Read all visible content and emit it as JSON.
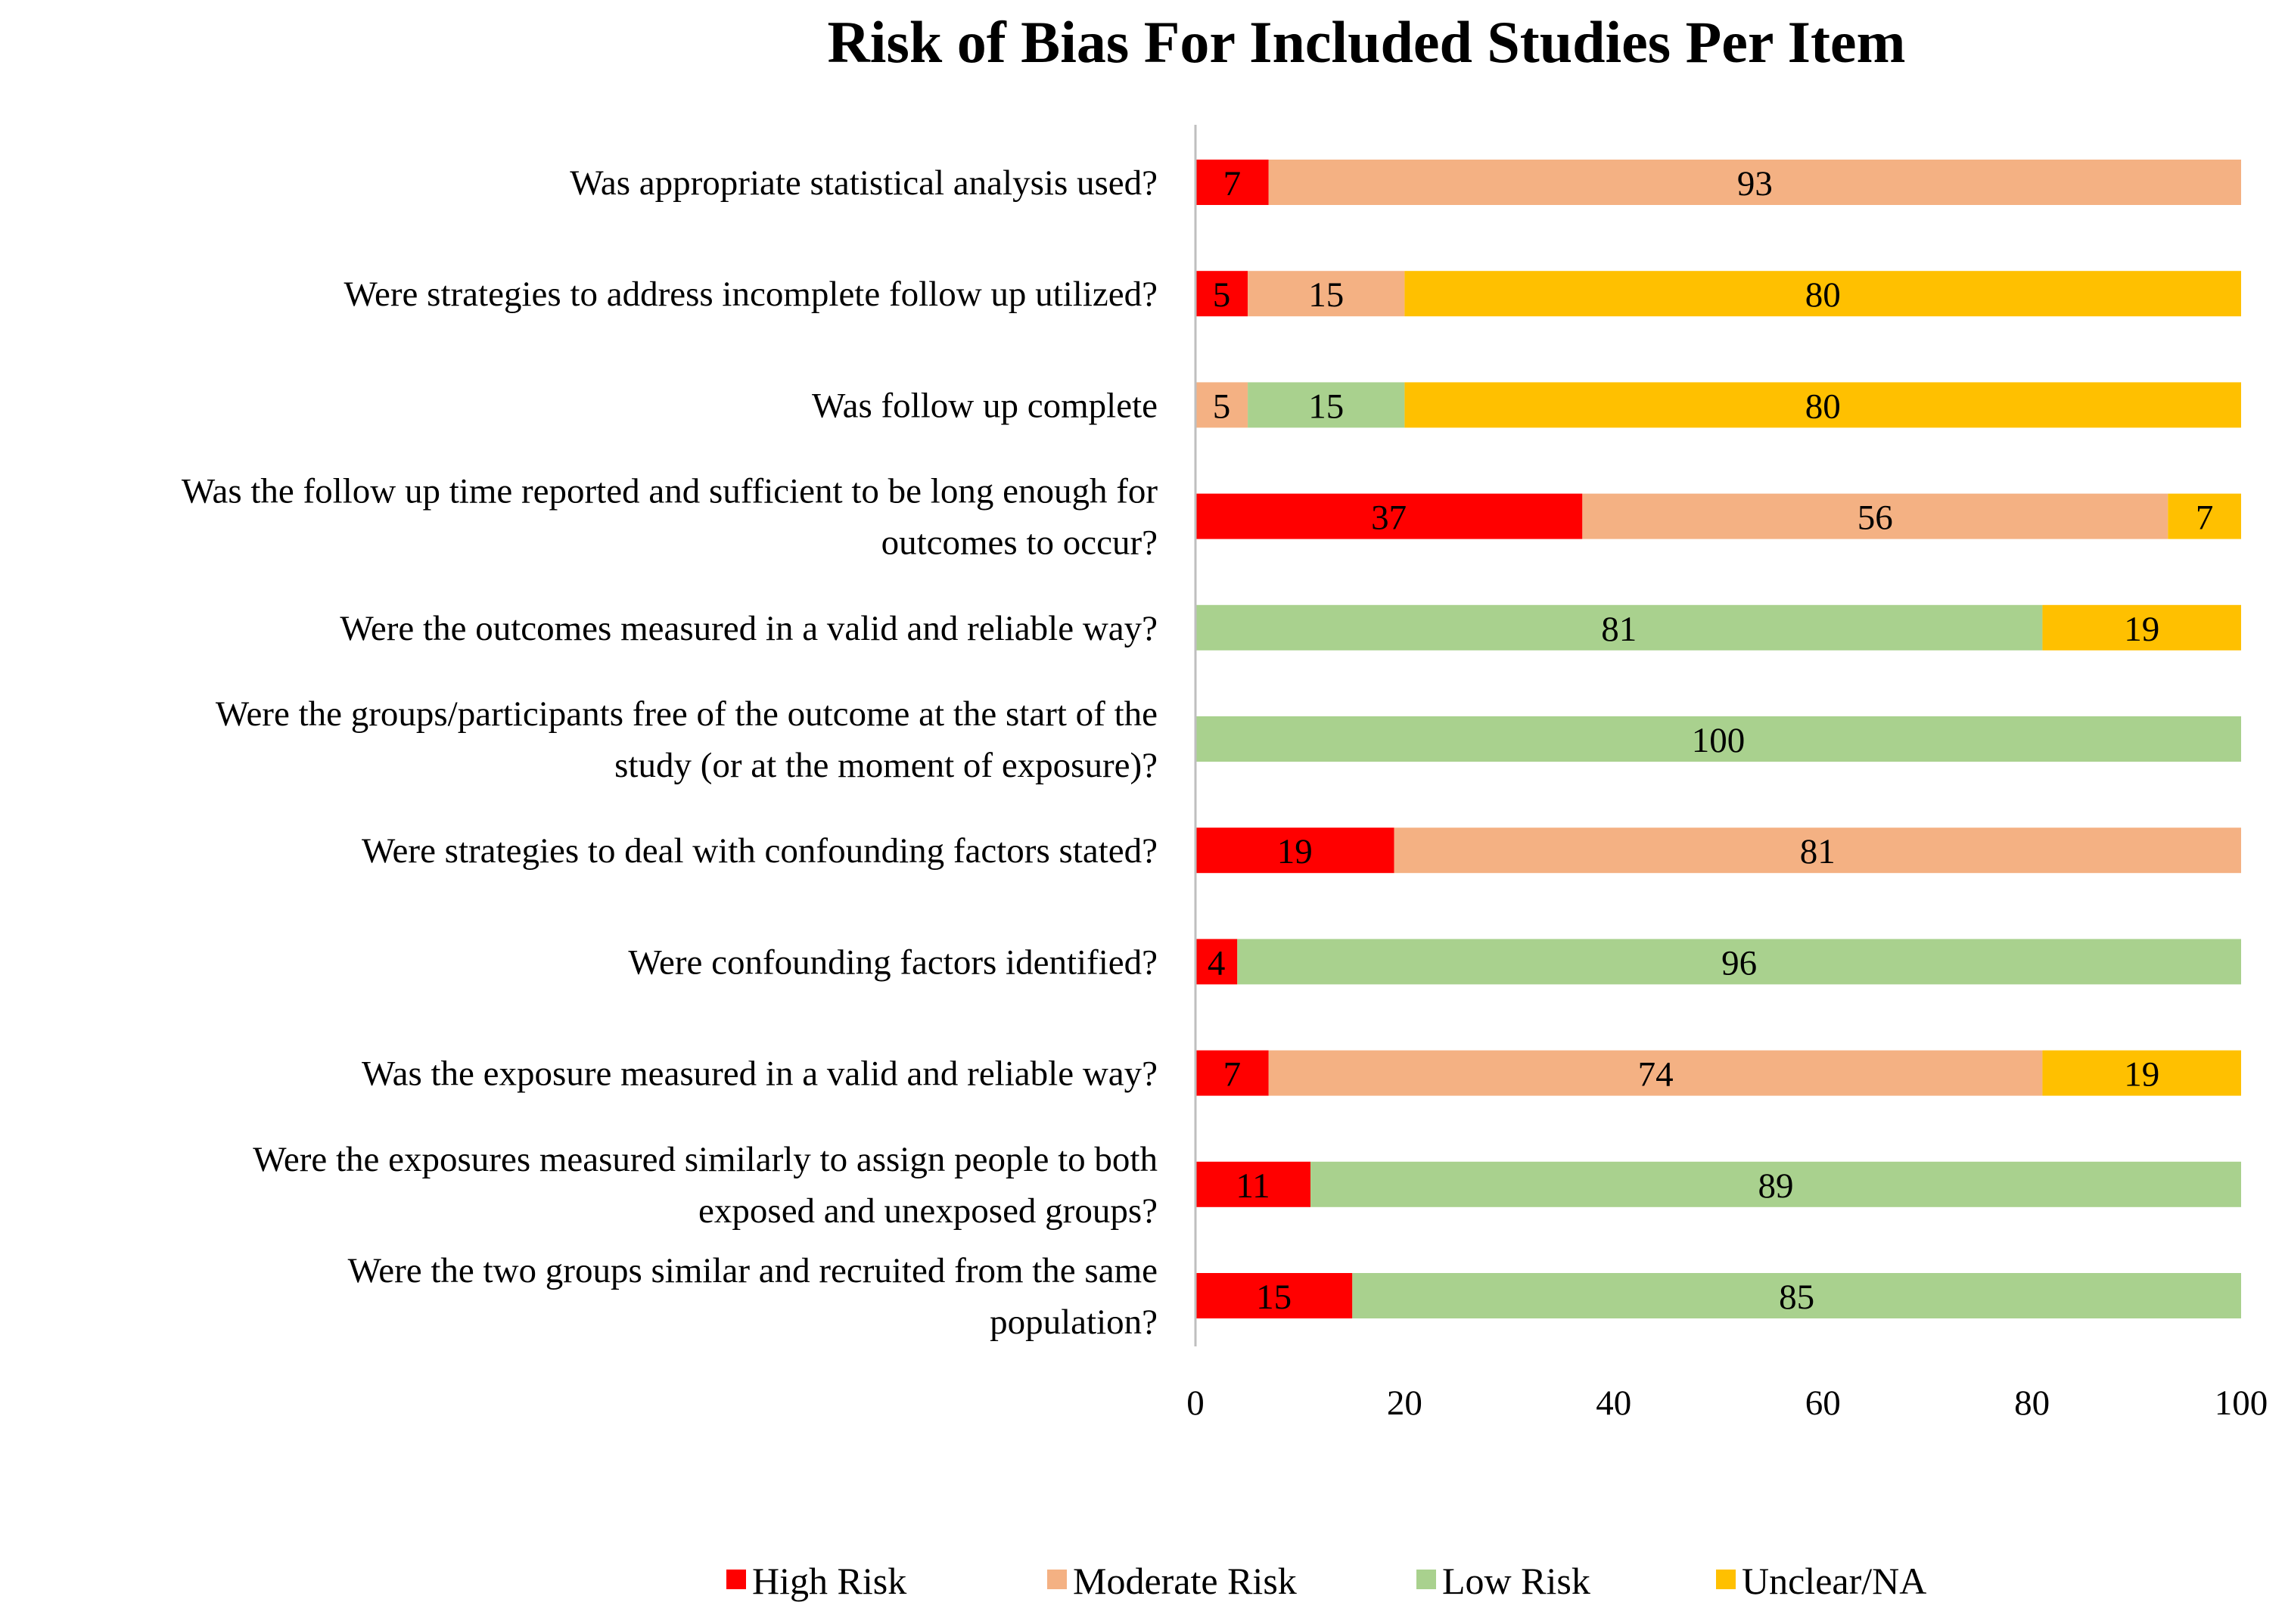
{
  "chart_data": {
    "type": "bar",
    "orientation": "horizontal",
    "stacked": true,
    "title": "Risk of Bias For Included Studies Per Item",
    "xlabel": "",
    "ylabel": "",
    "xlim": [
      0,
      100
    ],
    "x_ticks": [
      "0",
      "20",
      "40",
      "60",
      "80",
      "100"
    ],
    "grid": false,
    "legend_position": "bottom",
    "categories": [
      [
        "Was appropriate statistical analysis used?"
      ],
      [
        "Were strategies to address incomplete follow up utilized?"
      ],
      [
        "Was follow up complete"
      ],
      [
        "Was the follow up time reported and sufficient to be long enough for",
        "outcomes to occur?"
      ],
      [
        "Were the outcomes measured in a valid and reliable way?"
      ],
      [
        "Were the groups/participants free of the outcome at the start of the",
        "study (or at the moment of exposure)?"
      ],
      [
        "Were strategies to deal with confounding factors stated?"
      ],
      [
        "Were confounding factors identified?"
      ],
      [
        "Was the exposure measured in a valid and reliable way?"
      ],
      [
        "Were the exposures measured similarly to assign people to both",
        "exposed and unexposed groups?"
      ],
      [
        "Were the two groups similar and recruited from the same",
        "population?"
      ]
    ],
    "series": [
      {
        "name": "High Risk",
        "color": "#ff0000",
        "values": [
          7,
          5,
          0,
          37,
          0,
          0,
          19,
          4,
          7,
          11,
          15
        ]
      },
      {
        "name": "Moderate Risk",
        "color": "#f4b183",
        "values": [
          93,
          15,
          5,
          56,
          0,
          0,
          81,
          0,
          74,
          0,
          0
        ]
      },
      {
        "name": "Low Risk",
        "color": "#a9d18e",
        "values": [
          0,
          0,
          15,
          0,
          81,
          100,
          0,
          96,
          0,
          89,
          85
        ]
      },
      {
        "name": "Unclear/NA",
        "color": "#ffc000",
        "values": [
          0,
          80,
          80,
          7,
          19,
          0,
          0,
          0,
          19,
          0,
          0
        ]
      }
    ]
  }
}
